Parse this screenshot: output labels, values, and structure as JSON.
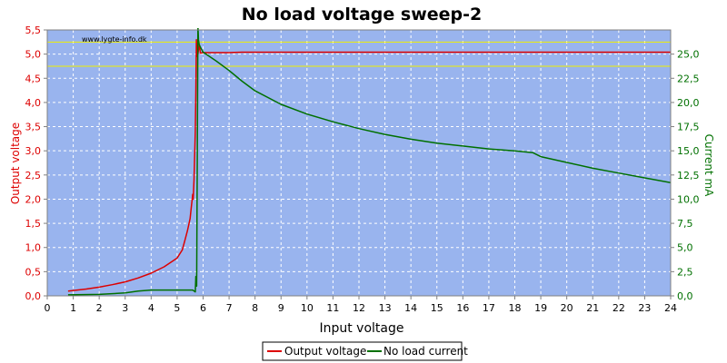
{
  "chart_data": {
    "type": "line",
    "title": "No load voltage sweep-2",
    "watermark": "www.lygte-info.dk",
    "xlabel": "Input voltage",
    "ylabel_left": "Output voltage",
    "ylabel_right": "Current mA",
    "xlim": [
      0,
      24
    ],
    "ylim_left": [
      0,
      5.5
    ],
    "ylim_right": [
      0,
      27.5
    ],
    "x_ticks": [
      "0",
      "1",
      "2",
      "3",
      "4",
      "5",
      "6",
      "7",
      "8",
      "9",
      "10",
      "11",
      "12",
      "13",
      "14",
      "15",
      "16",
      "17",
      "18",
      "19",
      "20",
      "21",
      "22",
      "23",
      "24"
    ],
    "y_left_ticks": [
      "0,0",
      "0,5",
      "1,0",
      "1,5",
      "2,0",
      "2,5",
      "3,0",
      "3,5",
      "4,0",
      "4,5",
      "5,0",
      "5,5"
    ],
    "y_right_ticks": [
      "0,0",
      "2,5",
      "5,0",
      "7,5",
      "10,0",
      "12,5",
      "15,0",
      "17,5",
      "20,0",
      "22,5",
      "25,0"
    ],
    "reference_lines_left": [
      5.25,
      4.75
    ],
    "grid": true,
    "legend_position": "bottom-center",
    "series": [
      {
        "name": "Output voltage",
        "axis": "left",
        "color": "#dd0000",
        "x": [
          0.8,
          1.0,
          1.5,
          2.0,
          2.5,
          3.0,
          3.5,
          4.0,
          4.5,
          5.0,
          5.2,
          5.3,
          5.4,
          5.5,
          5.55,
          5.6,
          5.62,
          5.65,
          5.7,
          5.72,
          5.74,
          5.76,
          5.78,
          5.8,
          5.85,
          5.9,
          6.0,
          7.0,
          7.5,
          8.0,
          10,
          15,
          20,
          24
        ],
        "y": [
          0.1,
          0.11,
          0.14,
          0.18,
          0.23,
          0.29,
          0.37,
          0.47,
          0.6,
          0.78,
          0.95,
          1.15,
          1.35,
          1.6,
          1.85,
          2.1,
          2.0,
          2.4,
          3.4,
          4.2,
          5.3,
          4.95,
          5.15,
          5.0,
          5.2,
          5.02,
          5.03,
          5.03,
          5.04,
          5.04,
          5.04,
          5.04,
          5.04,
          5.04
        ]
      },
      {
        "name": "No load current",
        "axis": "right",
        "color": "#007000",
        "x": [
          0.8,
          2.0,
          3.0,
          3.5,
          4.0,
          5.0,
          5.6,
          5.7,
          5.72,
          5.75,
          5.8,
          5.82,
          5.85,
          5.9,
          6.0,
          6.5,
          7.0,
          7.5,
          8.0,
          9,
          10,
          11,
          12,
          13,
          14,
          15,
          16,
          17,
          18,
          18.7,
          19,
          20,
          21,
          22,
          23,
          24
        ],
        "y": [
          0.1,
          0.15,
          0.3,
          0.5,
          0.6,
          0.6,
          0.6,
          0.4,
          2.0,
          1.0,
          28.0,
          26.5,
          26.0,
          25.7,
          25.2,
          24.3,
          23.3,
          22.2,
          21.2,
          19.8,
          18.8,
          18.0,
          17.3,
          16.7,
          16.2,
          15.8,
          15.5,
          15.2,
          15.0,
          14.8,
          14.4,
          13.8,
          13.2,
          12.7,
          12.2,
          11.7
        ]
      }
    ]
  }
}
